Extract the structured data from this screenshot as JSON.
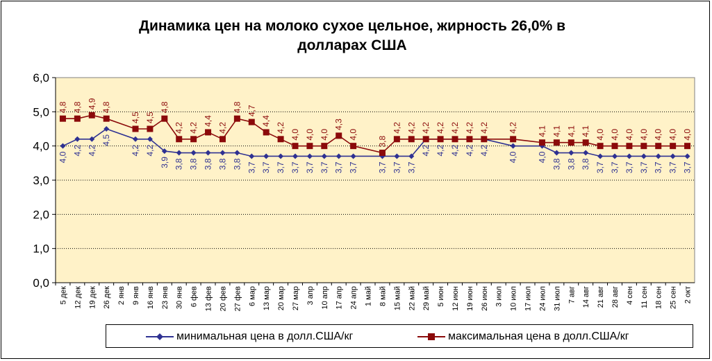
{
  "chart_data": {
    "type": "line",
    "title_lines": [
      "Динамика цен на молоко сухое цельное, жирность 26,0%  в",
      "долларах США"
    ],
    "xlabel": "",
    "ylabel": "",
    "ylim": [
      0,
      6
    ],
    "yticks": [
      "0,0",
      "1,0",
      "2,0",
      "3,0",
      "4,0",
      "5,0",
      "6,0"
    ],
    "grid": true,
    "legend_position": "bottom",
    "plot_background": "#FFF2C8",
    "categories": [
      "5 дек",
      "12 дек",
      "19 дек",
      "26 дек",
      "2 янв",
      "9 янв",
      "16 янв",
      "23 янв",
      "30 янв",
      "6 фев",
      "13 фев",
      "20 фев",
      "27 фев",
      "6 мар",
      "13 мар",
      "20 мар",
      "27 мар",
      "3 апр",
      "10 апр",
      "17 апр",
      "24 апр",
      "1 май",
      "8 май",
      "15 май",
      "22 май",
      "29 май",
      "5 июн",
      "12 июн",
      "19 июн",
      "26 июн",
      "3 июл",
      "10 июл",
      "17 июл",
      "24 июл",
      "31 июл",
      "7 авг",
      "14 авг",
      "21 авг",
      "28 авг",
      "4 сен",
      "11 сен",
      "18 сен",
      "25 сен",
      "2 окт"
    ],
    "series": [
      {
        "name": "минимальная цена в долл.США/кг",
        "color": "#2E3192",
        "marker": "diamond",
        "values": [
          4.0,
          4.2,
          4.2,
          4.5,
          null,
          4.2,
          4.2,
          3.85,
          3.8,
          3.8,
          3.8,
          3.8,
          3.8,
          3.7,
          3.7,
          3.7,
          3.7,
          3.7,
          3.7,
          3.7,
          3.7,
          null,
          3.7,
          3.7,
          3.7,
          4.2,
          4.2,
          4.2,
          4.2,
          4.2,
          null,
          4.0,
          null,
          4.0,
          3.8,
          3.8,
          3.8,
          3.7,
          3.7,
          3.7,
          3.7,
          3.7,
          3.7,
          3.7
        ],
        "labels": [
          "4,0",
          "4,2",
          "4,2",
          "4,5",
          "",
          "4,2",
          "4,2",
          "3,9",
          "3,8",
          "3,8",
          "3,8",
          "3,8",
          "3,8",
          "3,7",
          "3,7",
          "3,7",
          "3,7",
          "3,7",
          "3,7",
          "3,7",
          "3,7",
          "",
          "3,7",
          "3,7",
          "3,7",
          "4,2",
          "4,2",
          "4,2",
          "4,2",
          "4,2",
          "",
          "4,0",
          "",
          "4,0",
          "3,8",
          "3,8",
          "3,8",
          "3,7",
          "3,7",
          "3,7",
          "3,7",
          "3,7",
          "3,7",
          "3,7"
        ]
      },
      {
        "name": "максимальная цена в долл.США/кг",
        "color": "#8B0A0A",
        "marker": "square",
        "values": [
          4.8,
          4.8,
          4.9,
          4.8,
          null,
          4.5,
          4.5,
          4.8,
          4.2,
          4.2,
          4.4,
          4.2,
          4.8,
          4.7,
          4.4,
          4.2,
          4.0,
          4.0,
          4.0,
          4.3,
          4.0,
          null,
          3.8,
          4.2,
          4.2,
          4.2,
          4.2,
          4.2,
          4.2,
          4.2,
          null,
          4.2,
          null,
          4.1,
          4.1,
          4.1,
          4.1,
          4.0,
          4.0,
          4.0,
          4.0,
          4.0,
          4.0,
          4.0
        ],
        "labels": [
          "4,8",
          "4,8",
          "4,9",
          "4,8",
          "",
          "4,5",
          "4,5",
          "4,8",
          "4,2",
          "4,2",
          "4,4",
          "4,2",
          "4,8",
          "4,7",
          "4,4",
          "4,2",
          "4,0",
          "4,0",
          "4,0",
          "4,3",
          "4,0",
          "",
          "3,8",
          "4,2",
          "4,2",
          "4,2",
          "4,2",
          "4,2",
          "4,2",
          "4,2",
          "",
          "4,2",
          "",
          "4,1",
          "4,1",
          "4,1",
          "4,1",
          "4,0",
          "4,0",
          "4,0",
          "4,0",
          "4,0",
          "4,0",
          "4,0"
        ]
      }
    ]
  }
}
